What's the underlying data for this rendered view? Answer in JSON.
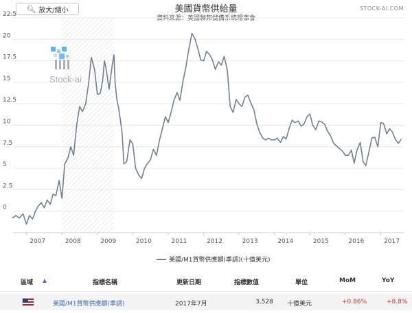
{
  "toolbar": {
    "zoom_label": "放大/縮小"
  },
  "brand": {
    "site": "STOCK-AI.COM",
    "logo_text": "Stock-ai"
  },
  "chart_data": {
    "type": "line",
    "title": "美國貨幣供給量",
    "subtitle": "資料來源：美國聯邦儲備系統理事會",
    "xlabel": "",
    "ylabel": "",
    "ylim": [
      -2.5,
      22.5
    ],
    "yticks": [
      "22.5",
      "20",
      "17.5",
      "15",
      "12.5",
      "10",
      "7.5",
      "5",
      "2.5",
      "0"
    ],
    "ytick_values": [
      22.5,
      20,
      17.5,
      15,
      12.5,
      10,
      7.5,
      5,
      2.5,
      0
    ],
    "xticks": [
      "2007",
      "2008",
      "2009",
      "2010",
      "2011",
      "2012",
      "2013",
      "2014",
      "2015",
      "2016",
      "2017"
    ],
    "xlim": [
      2006.6,
      2017.65
    ],
    "shaded_region": [
      2008.0,
      2009.45
    ],
    "grid": "horizontal",
    "legend_position": "bottom-center",
    "series": [
      {
        "name": "美國/M1貨幣供應額(季調)(十億美元)",
        "color": "#708090",
        "x": [
          2006.6,
          2006.7,
          2006.8,
          2006.9,
          2007.0,
          2007.08,
          2007.17,
          2007.25,
          2007.33,
          2007.42,
          2007.5,
          2007.58,
          2007.67,
          2007.75,
          2007.83,
          2007.92,
          2008.0,
          2008.08,
          2008.17,
          2008.25,
          2008.33,
          2008.42,
          2008.5,
          2008.58,
          2008.67,
          2008.75,
          2008.83,
          2008.92,
          2009.0,
          2009.08,
          2009.15,
          2009.2,
          2009.25,
          2009.33,
          2009.42,
          2009.47,
          2009.5,
          2009.55,
          2009.6,
          2009.65,
          2009.7,
          2009.75,
          2009.83,
          2009.92,
          2010.0,
          2010.08,
          2010.17,
          2010.25,
          2010.33,
          2010.42,
          2010.5,
          2010.58,
          2010.67,
          2010.75,
          2010.83,
          2010.92,
          2011.0,
          2011.08,
          2011.17,
          2011.25,
          2011.33,
          2011.42,
          2011.5,
          2011.58,
          2011.67,
          2011.75,
          2011.83,
          2011.92,
          2012.0,
          2012.08,
          2012.17,
          2012.25,
          2012.33,
          2012.42,
          2012.5,
          2012.58,
          2012.67,
          2012.75,
          2012.83,
          2012.92,
          2013.0,
          2013.08,
          2013.17,
          2013.25,
          2013.33,
          2013.42,
          2013.5,
          2013.58,
          2013.67,
          2013.75,
          2013.83,
          2013.92,
          2014.0,
          2014.08,
          2014.17,
          2014.25,
          2014.33,
          2014.42,
          2014.5,
          2014.58,
          2014.67,
          2014.75,
          2014.83,
          2014.92,
          2015.0,
          2015.08,
          2015.17,
          2015.25,
          2015.33,
          2015.42,
          2015.5,
          2015.58,
          2015.67,
          2015.75,
          2015.83,
          2015.92,
          2016.0,
          2016.08,
          2016.17,
          2016.25,
          2016.33,
          2016.42,
          2016.5,
          2016.58,
          2016.67,
          2016.75,
          2016.83,
          2016.92,
          2017.0,
          2017.08,
          2017.17,
          2017.25,
          2017.33,
          2017.42,
          2017.5,
          2017.58
        ],
        "values": [
          -0.8,
          -0.5,
          -0.8,
          -0.3,
          -1.5,
          -0.5,
          -0.9,
          0.0,
          0.6,
          1.0,
          0.4,
          1.3,
          0.8,
          2.0,
          1.8,
          3.6,
          1.5,
          5.5,
          6.2,
          7.5,
          6.5,
          10.2,
          12.2,
          11.6,
          12.5,
          14.8,
          17.9,
          16.5,
          13.6,
          13.7,
          15.2,
          17.5,
          16.5,
          14.2,
          17.0,
          18.2,
          15.0,
          13.0,
          12.0,
          10.6,
          9.0,
          5.5,
          5.8,
          8.3,
          7.8,
          5.0,
          4.2,
          3.8,
          5.0,
          5.6,
          6.0,
          7.2,
          6.5,
          8.2,
          9.5,
          11.0,
          10.3,
          11.5,
          13.0,
          13.8,
          12.9,
          15.2,
          16.8,
          18.8,
          20.7,
          20.1,
          19.0,
          17.6,
          17.5,
          18.6,
          18.2,
          17.6,
          16.5,
          17.4,
          17.0,
          18.0,
          16.4,
          12.2,
          11.5,
          13.0,
          12.5,
          12.2,
          13.3,
          13.5,
          12.6,
          11.8,
          10.2,
          9.2,
          8.5,
          8.3,
          8.5,
          8.3,
          8.3,
          8.5,
          8.0,
          8.7,
          8.4,
          9.7,
          10.6,
          10.3,
          10.5,
          9.9,
          10.1,
          11.0,
          11.3,
          10.0,
          9.5,
          10.5,
          10.4,
          10.1,
          9.3,
          8.8,
          7.9,
          7.6,
          7.3,
          7.0,
          6.5,
          6.5,
          7.1,
          5.6,
          7.1,
          8.0,
          5.8,
          5.3,
          7.0,
          8.5,
          8.6,
          7.5,
          10.3,
          10.2,
          9.0,
          9.6,
          9.2,
          8.3,
          7.9,
          8.4
        ]
      }
    ]
  },
  "table": {
    "headers": {
      "region": "區域",
      "name": "指標名稱",
      "date": "更新日期",
      "value": "指標數值",
      "unit": "單位",
      "mom": "MoM",
      "yoy": "YoY"
    },
    "sort_arrow": "▲",
    "rows": [
      {
        "name": "美國/M1貨幣供應額(季調)",
        "date": "2017年7月",
        "value": "3,528",
        "unit": "十億美元",
        "mom": "+0.86%",
        "yoy": "+8.8%",
        "change_color": "#c0392b"
      }
    ]
  }
}
